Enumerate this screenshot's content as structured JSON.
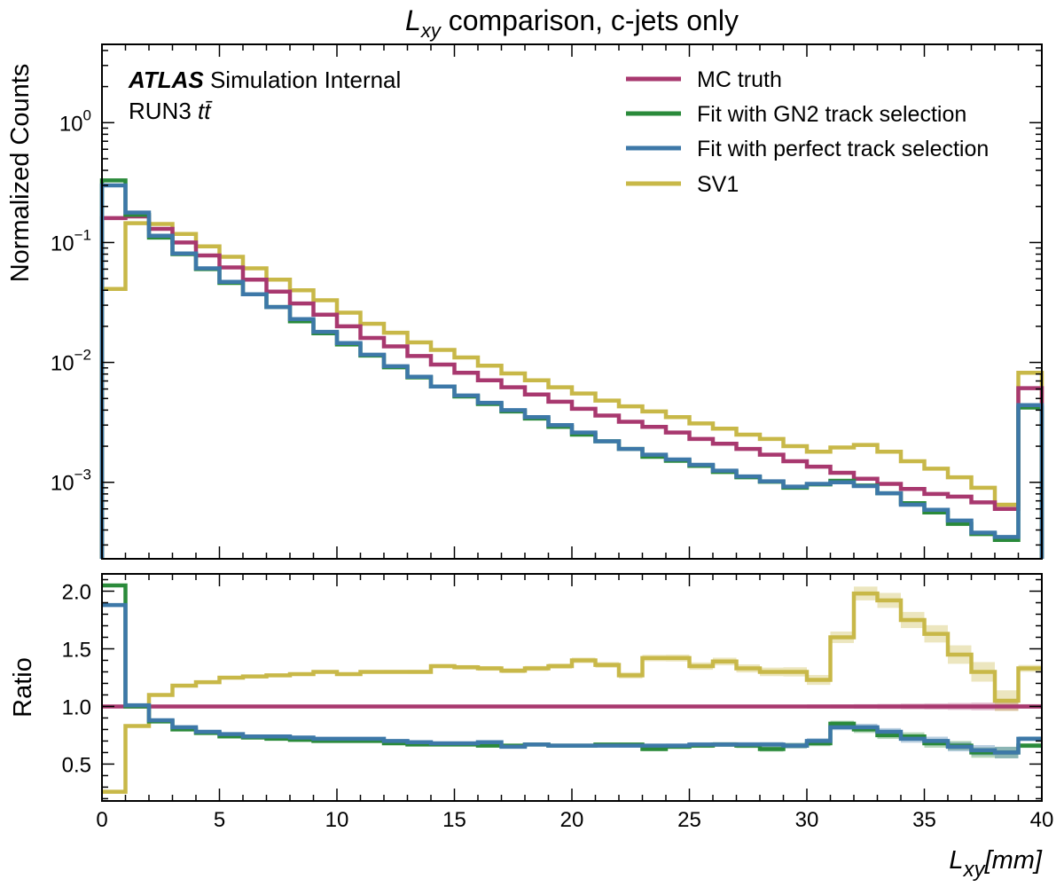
{
  "chart_data": {
    "type": "line",
    "title_main": "L",
    "title_sub": "xy",
    "title_rest": " comparison, c-jets only",
    "atlas": {
      "bold": "ATLAS",
      "rest": " Simulation Internal",
      "run": "RUN3 ",
      "process": "tt̄"
    },
    "bin_edges": [
      0,
      1,
      2,
      3,
      4,
      5,
      6,
      7,
      8,
      9,
      10,
      11,
      12,
      13,
      14,
      15,
      16,
      17,
      18,
      19,
      20,
      21,
      22,
      23,
      24,
      25,
      26,
      27,
      28,
      29,
      30,
      31,
      32,
      33,
      34,
      35,
      36,
      37,
      38,
      39,
      40
    ],
    "main_panel": {
      "ylabel": "Normalized Counts",
      "yscale": "log",
      "ylim": [
        0.00023,
        4.5
      ],
      "y_ticks": [
        {
          "value": 0.001,
          "base": "10",
          "exp": "−3"
        },
        {
          "value": 0.01,
          "base": "10",
          "exp": "−2"
        },
        {
          "value": 0.1,
          "base": "10",
          "exp": "−1"
        },
        {
          "value": 1,
          "base": "10",
          "exp": "0"
        }
      ],
      "series": [
        {
          "name": "MC truth",
          "color": "#a8386f",
          "values": [
            0.16,
            0.165,
            0.13,
            0.1,
            0.078,
            0.062,
            0.049,
            0.039,
            0.031,
            0.025,
            0.02,
            0.016,
            0.0136,
            0.0113,
            0.0096,
            0.0082,
            0.0071,
            0.0062,
            0.0054,
            0.0047,
            0.0041,
            0.0036,
            0.0032,
            0.0029,
            0.0026,
            0.0023,
            0.0021,
            0.0019,
            0.0017,
            0.0015,
            0.00135,
            0.0012,
            0.00107,
            0.00097,
            0.00088,
            0.0008,
            0.00076,
            0.00068,
            0.0006,
            0.0061
          ]
        },
        {
          "name": "Fit with GN2 track selection",
          "color": "#2a8a3a",
          "values": [
            0.33,
            0.17,
            0.11,
            0.08,
            0.06,
            0.046,
            0.037,
            0.029,
            0.022,
            0.0175,
            0.0141,
            0.0114,
            0.0091,
            0.0075,
            0.0063,
            0.0052,
            0.0045,
            0.0039,
            0.0034,
            0.0029,
            0.0025,
            0.0022,
            0.0019,
            0.00163,
            0.00151,
            0.00137,
            0.00122,
            0.0011,
            0.00101,
            0.0009,
            0.00096,
            0.00103,
            0.00094,
            0.00081,
            0.00067,
            0.00056,
            0.00045,
            0.00037,
            0.00033,
            0.0042
          ]
        },
        {
          "name": "Fit with perfect track selection",
          "color": "#3d78a8",
          "values": [
            0.3,
            0.178,
            0.114,
            0.081,
            0.061,
            0.047,
            0.037,
            0.029,
            0.023,
            0.018,
            0.0145,
            0.0116,
            0.0093,
            0.0076,
            0.0063,
            0.0053,
            0.0046,
            0.004,
            0.0035,
            0.003,
            0.0026,
            0.0022,
            0.0019,
            0.0017,
            0.00155,
            0.0014,
            0.00125,
            0.00112,
            0.00102,
            0.00092,
            0.00097,
            0.001,
            0.00093,
            0.00081,
            0.00065,
            0.00059,
            0.00048,
            0.00038,
            0.00035,
            0.0044
          ]
        },
        {
          "name": "SV1",
          "color": "#c8b848",
          "values": [
            0.041,
            0.145,
            0.143,
            0.118,
            0.093,
            0.076,
            0.061,
            0.049,
            0.04,
            0.033,
            0.026,
            0.021,
            0.0177,
            0.0147,
            0.0127,
            0.011,
            0.0094,
            0.0081,
            0.0071,
            0.0062,
            0.0055,
            0.0048,
            0.0043,
            0.0039,
            0.0035,
            0.0031,
            0.0028,
            0.0025,
            0.0023,
            0.002,
            0.0018,
            0.00195,
            0.00205,
            0.0018,
            0.0015,
            0.0013,
            0.0011,
            0.0009,
            0.00065,
            0.0082
          ]
        }
      ]
    },
    "ratio_panel": {
      "ylabel": "Ratio",
      "ylim": [
        0.18,
        2.15
      ],
      "y_ticks": [
        0.5,
        1.0,
        1.5,
        2.0
      ],
      "y_tick_labels": [
        "0.5",
        "1.0",
        "1.5",
        "2.0"
      ],
      "series": [
        {
          "name": "MC truth",
          "color": "#a8386f",
          "values": [
            1,
            1,
            1,
            1,
            1,
            1,
            1,
            1,
            1,
            1,
            1,
            1,
            1,
            1,
            1,
            1,
            1,
            1,
            1,
            1,
            1,
            1,
            1,
            1,
            1,
            1,
            1,
            1,
            1,
            1,
            1,
            1,
            1,
            1,
            1,
            1,
            1,
            1,
            1,
            1
          ],
          "err": [
            0,
            0,
            0,
            0,
            0,
            0,
            0,
            0,
            0,
            0,
            0,
            0,
            0,
            0,
            0,
            0,
            0,
            0,
            0,
            0,
            0,
            0,
            0,
            0.005,
            0.007,
            0.008,
            0.01,
            0.012,
            0.013,
            0.015,
            0.017,
            0.018,
            0.02,
            0.022,
            0.025,
            0.027,
            0.03,
            0.033,
            0.036,
            0.02
          ]
        },
        {
          "name": "Fit with GN2 track selection",
          "color": "#2a8a3a",
          "values": [
            2.05,
            1.0,
            0.87,
            0.8,
            0.77,
            0.74,
            0.73,
            0.72,
            0.71,
            0.7,
            0.7,
            0.7,
            0.68,
            0.67,
            0.67,
            0.67,
            0.66,
            0.66,
            0.67,
            0.66,
            0.66,
            0.67,
            0.67,
            0.63,
            0.65,
            0.66,
            0.67,
            0.66,
            0.63,
            0.66,
            0.68,
            0.85,
            0.8,
            0.75,
            0.74,
            0.68,
            0.66,
            0.6,
            0.6,
            0.66
          ],
          "err": [
            0.005,
            0.005,
            0.005,
            0.005,
            0.005,
            0.005,
            0.005,
            0.006,
            0.006,
            0.007,
            0.007,
            0.008,
            0.008,
            0.009,
            0.009,
            0.01,
            0.011,
            0.011,
            0.012,
            0.013,
            0.014,
            0.015,
            0.016,
            0.017,
            0.018,
            0.019,
            0.02,
            0.021,
            0.022,
            0.024,
            0.025,
            0.026,
            0.03,
            0.032,
            0.035,
            0.038,
            0.04,
            0.045,
            0.05,
            0.02
          ]
        },
        {
          "name": "Fit with perfect track selection",
          "color": "#3d78a8",
          "values": [
            1.88,
            1.01,
            0.88,
            0.82,
            0.78,
            0.76,
            0.74,
            0.74,
            0.73,
            0.72,
            0.72,
            0.72,
            0.7,
            0.69,
            0.68,
            0.68,
            0.69,
            0.65,
            0.67,
            0.66,
            0.66,
            0.66,
            0.66,
            0.66,
            0.66,
            0.67,
            0.67,
            0.67,
            0.67,
            0.66,
            0.7,
            0.82,
            0.82,
            0.78,
            0.72,
            0.7,
            0.65,
            0.62,
            0.6,
            0.72
          ],
          "err": [
            0.005,
            0.005,
            0.005,
            0.005,
            0.005,
            0.005,
            0.005,
            0.006,
            0.006,
            0.007,
            0.007,
            0.008,
            0.008,
            0.009,
            0.009,
            0.01,
            0.011,
            0.011,
            0.012,
            0.013,
            0.014,
            0.015,
            0.016,
            0.017,
            0.018,
            0.019,
            0.02,
            0.021,
            0.022,
            0.024,
            0.025,
            0.026,
            0.03,
            0.032,
            0.035,
            0.038,
            0.04,
            0.045,
            0.05,
            0.02
          ]
        },
        {
          "name": "SV1",
          "color": "#c8b848",
          "values": [
            0.26,
            0.83,
            1.1,
            1.18,
            1.21,
            1.25,
            1.26,
            1.27,
            1.28,
            1.3,
            1.28,
            1.3,
            1.3,
            1.3,
            1.35,
            1.34,
            1.33,
            1.31,
            1.33,
            1.35,
            1.4,
            1.36,
            1.27,
            1.42,
            1.42,
            1.35,
            1.39,
            1.33,
            1.3,
            1.3,
            1.23,
            1.6,
            1.98,
            1.92,
            1.75,
            1.63,
            1.45,
            1.3,
            1.05,
            1.33
          ],
          "err": [
            0.005,
            0.006,
            0.007,
            0.008,
            0.009,
            0.009,
            0.01,
            0.011,
            0.012,
            0.013,
            0.014,
            0.015,
            0.016,
            0.017,
            0.018,
            0.019,
            0.02,
            0.021,
            0.022,
            0.023,
            0.024,
            0.025,
            0.027,
            0.028,
            0.03,
            0.032,
            0.033,
            0.035,
            0.037,
            0.04,
            0.043,
            0.05,
            0.06,
            0.065,
            0.07,
            0.075,
            0.08,
            0.085,
            0.09,
            0.03
          ]
        }
      ]
    },
    "x_ticks": [
      0,
      5,
      10,
      15,
      20,
      25,
      30,
      35,
      40
    ],
    "x_tick_labels": [
      "0",
      "5",
      "10",
      "15",
      "20",
      "25",
      "30",
      "35",
      "40"
    ],
    "xlim": [
      0,
      40
    ],
    "xlabel": {
      "main": "L",
      "sub": "xy",
      "unit": "[mm]"
    },
    "legend_position": "top-right"
  }
}
